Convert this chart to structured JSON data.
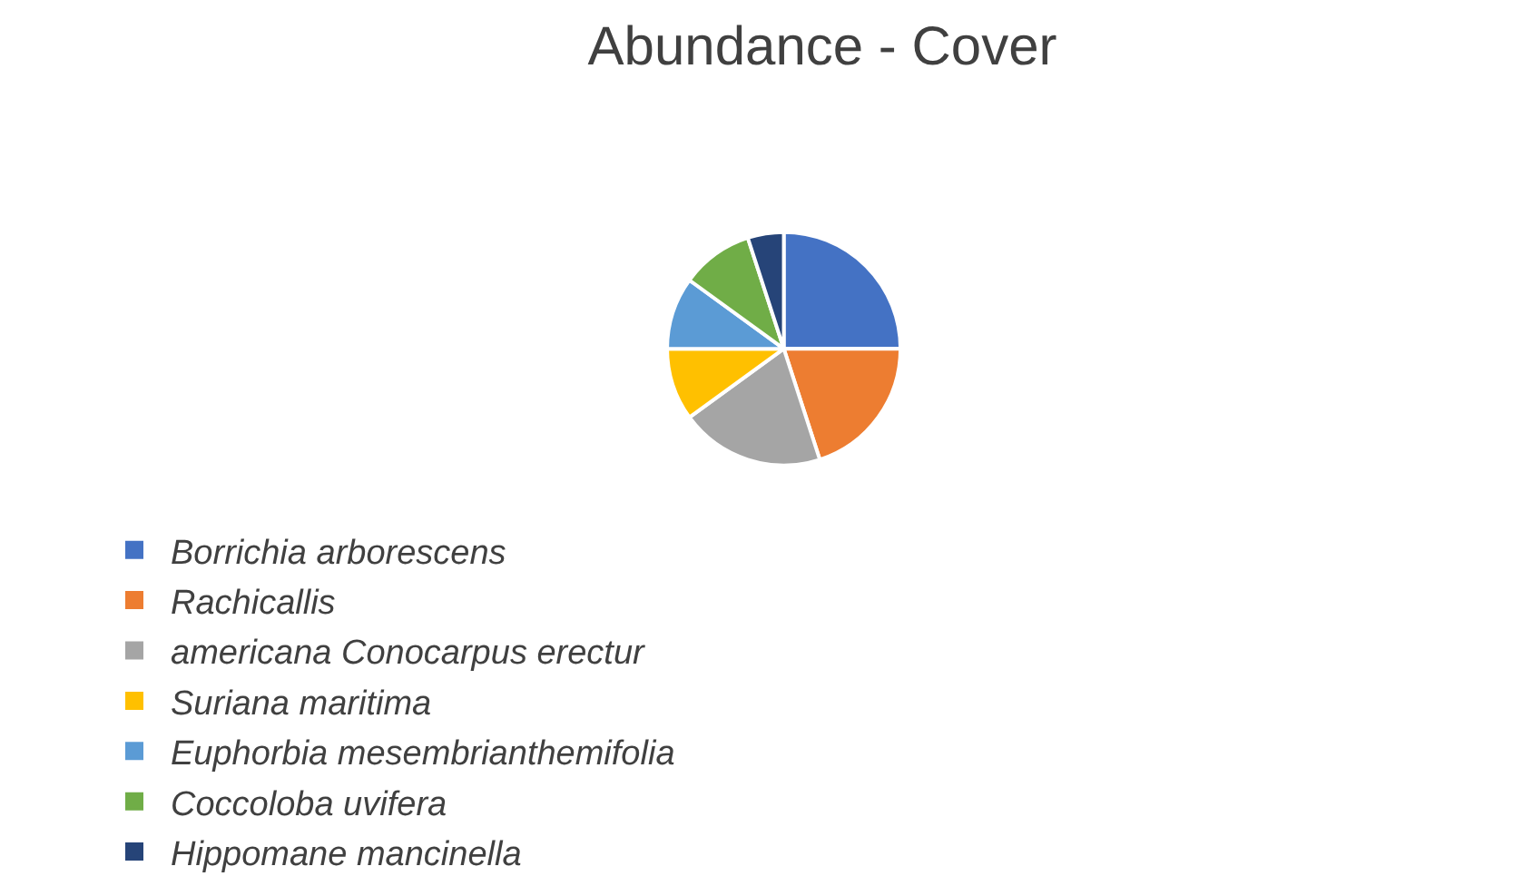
{
  "chart_data": {
    "type": "pie",
    "title": "Abundance - Cover",
    "categories": [
      "Borrichia arborescens",
      "Rachicallis",
      "americana Conocarpus erectur",
      "Suriana maritima",
      "Euphorbia mesembrianthemifolia",
      "Coccoloba uvifera",
      "Hippomane mancinella"
    ],
    "values": [
      25,
      20,
      20,
      10,
      10,
      10,
      5
    ],
    "colors": [
      "#4472c4",
      "#ed7d31",
      "#a5a5a5",
      "#ffc000",
      "#5b9bd5",
      "#70ad47",
      "#264478"
    ],
    "legend": "bottom"
  }
}
